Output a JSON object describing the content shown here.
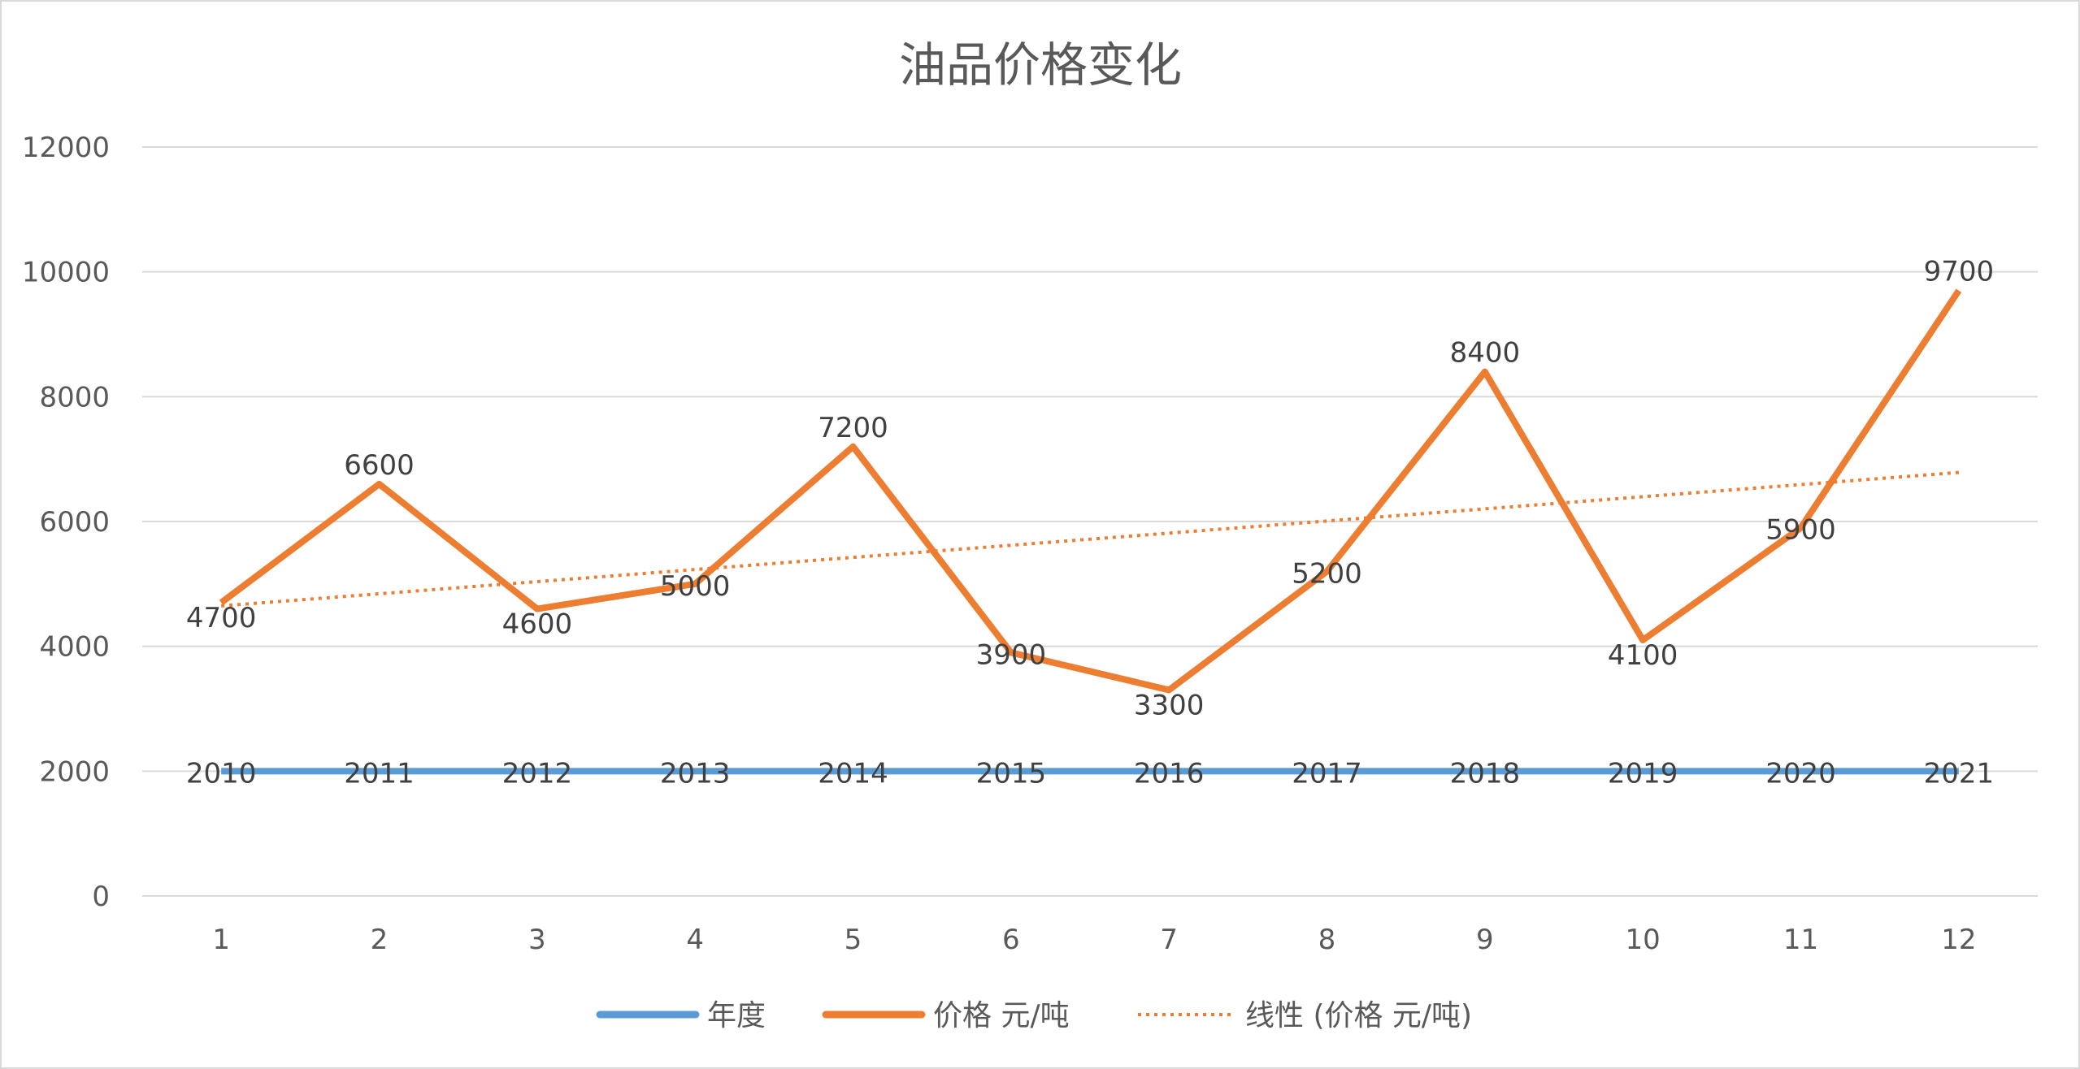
{
  "chart_data": {
    "type": "line",
    "title": "油品价格变化",
    "categories": [
      "1",
      "2",
      "3",
      "4",
      "5",
      "6",
      "7",
      "8",
      "9",
      "10",
      "11",
      "12"
    ],
    "ylim": [
      0,
      12000
    ],
    "yticks": [
      "0",
      "2000",
      "4000",
      "6000",
      "8000",
      "10000",
      "12000"
    ],
    "grid": true,
    "legend_position": "bottom",
    "series": [
      {
        "name": "年度",
        "color": "#5b9bd5",
        "values": [
          2010,
          2011,
          2012,
          2013,
          2014,
          2015,
          2016,
          2017,
          2018,
          2019,
          2020,
          2021
        ],
        "data_labels": true
      },
      {
        "name": "价格 元/吨",
        "color": "#ed7d31",
        "values": [
          4700,
          6600,
          4600,
          5000,
          7200,
          3900,
          3300,
          5200,
          8400,
          4100,
          5900,
          9700
        ],
        "data_labels": true
      }
    ],
    "trendline": {
      "name": "线性 (价格 元/吨)",
      "type": "linear",
      "of_series": "价格 元/吨",
      "color": "#ed7d31",
      "style": "dotted"
    }
  }
}
